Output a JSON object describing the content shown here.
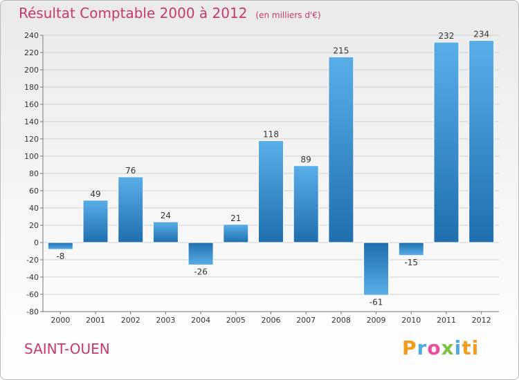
{
  "header": {
    "title": "Résultat Comptable 2000 à 2012",
    "unit": "(en milliers d'€)"
  },
  "footer": {
    "commune": "SAINT-OUEN",
    "logo": [
      "P",
      "r",
      "o",
      "x",
      "i",
      "ti"
    ]
  },
  "colors": {
    "title": "#c8396b",
    "bar_light": "#5aaee8",
    "bar_dark": "#1f6fae",
    "grid": "#d0d0d0"
  },
  "chart_data": {
    "type": "bar",
    "title": "Résultat Comptable 2000 à 2012",
    "subtitle": "(en milliers d'€)",
    "xlabel": "",
    "ylabel": "",
    "ylim": [
      -80,
      240
    ],
    "ytick_step": 20,
    "grid": true,
    "categories": [
      "2000",
      "2001",
      "2002",
      "2003",
      "2004",
      "2005",
      "2006",
      "2007",
      "2008",
      "2009",
      "2010",
      "2011",
      "2012"
    ],
    "values": [
      -8,
      49,
      76,
      24,
      -26,
      21,
      118,
      89,
      215,
      -61,
      -15,
      232,
      234
    ]
  }
}
